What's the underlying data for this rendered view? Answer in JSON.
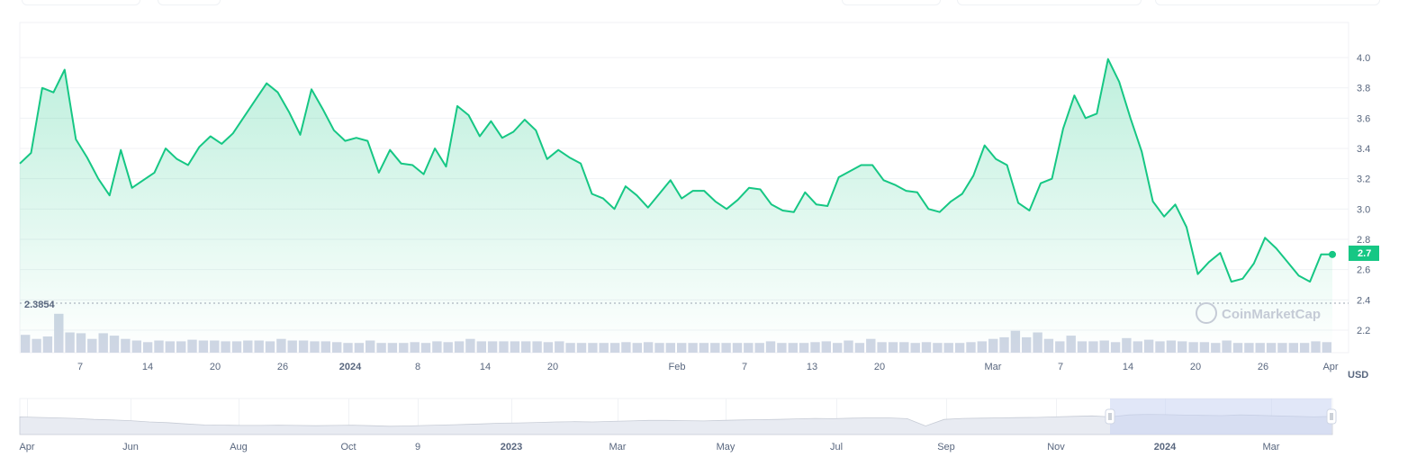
{
  "chart_data": {
    "type": "area",
    "currency_label": "USD",
    "watermark": "CoinMarketCap",
    "current_price_label": "2.7",
    "low_marker_label": "2.3854",
    "ylim": [
      2.1,
      4.2
    ],
    "y_ticks": [
      "4.0",
      "3.8",
      "3.6",
      "3.4",
      "3.2",
      "3.0",
      "2.8",
      "2.6",
      "2.4",
      "2.2"
    ],
    "x_ticks": [
      {
        "label": "7",
        "bold": false
      },
      {
        "label": "14",
        "bold": false
      },
      {
        "label": "20",
        "bold": false
      },
      {
        "label": "26",
        "bold": false
      },
      {
        "label": "2024",
        "bold": true
      },
      {
        "label": "8",
        "bold": false
      },
      {
        "label": "14",
        "bold": false
      },
      {
        "label": "20",
        "bold": false
      },
      {
        "label": "Feb",
        "bold": false
      },
      {
        "label": "7",
        "bold": false
      },
      {
        "label": "13",
        "bold": false
      },
      {
        "label": "20",
        "bold": false
      },
      {
        "label": "Mar",
        "bold": false
      },
      {
        "label": "7",
        "bold": false
      },
      {
        "label": "14",
        "bold": false
      },
      {
        "label": "20",
        "bold": false
      },
      {
        "label": "26",
        "bold": false
      },
      {
        "label": "Apr",
        "bold": false
      }
    ],
    "navigator_ticks": [
      {
        "label": "Apr",
        "bold": false
      },
      {
        "label": "Jun",
        "bold": false
      },
      {
        "label": "Aug",
        "bold": false
      },
      {
        "label": "Oct",
        "bold": false
      },
      {
        "label": "9",
        "bold": false
      },
      {
        "label": "2023",
        "bold": true
      },
      {
        "label": "Mar",
        "bold": false
      },
      {
        "label": "May",
        "bold": false
      },
      {
        "label": "Jul",
        "bold": false
      },
      {
        "label": "Sep",
        "bold": false
      },
      {
        "label": "Nov",
        "bold": false
      },
      {
        "label": "2024",
        "bold": true
      },
      {
        "label": "Mar",
        "bold": false
      }
    ],
    "price_series": [
      3.3,
      3.37,
      3.8,
      3.77,
      3.92,
      3.46,
      3.34,
      3.2,
      3.09,
      3.39,
      3.14,
      3.19,
      3.24,
      3.4,
      3.33,
      3.29,
      3.41,
      3.48,
      3.43,
      3.5,
      3.61,
      3.72,
      3.83,
      3.77,
      3.64,
      3.49,
      3.79,
      3.66,
      3.52,
      3.45,
      3.47,
      3.45,
      3.24,
      3.39,
      3.3,
      3.29,
      3.23,
      3.4,
      3.28,
      3.68,
      3.62,
      3.48,
      3.58,
      3.47,
      3.51,
      3.59,
      3.52,
      3.33,
      3.39,
      3.34,
      3.3,
      3.1,
      3.07,
      3.0,
      3.15,
      3.09,
      3.01,
      3.1,
      3.19,
      3.07,
      3.12,
      3.12,
      3.05,
      3.0,
      3.06,
      3.14,
      3.13,
      3.03,
      2.99,
      2.98,
      3.11,
      3.03,
      3.02,
      3.21,
      3.25,
      3.29,
      3.29,
      3.19,
      3.16,
      3.12,
      3.11,
      3.0,
      2.98,
      3.05,
      3.1,
      3.22,
      3.42,
      3.33,
      3.29,
      3.04,
      2.99,
      3.17,
      3.2,
      3.53,
      3.75,
      3.6,
      3.63,
      3.99,
      3.84,
      3.6,
      3.38,
      3.05,
      2.95,
      3.03,
      2.88,
      2.57,
      2.65,
      2.71,
      2.52,
      2.54,
      2.64,
      2.81,
      2.74,
      2.65,
      2.56,
      2.52,
      2.7,
      2.7
    ],
    "volume_series": [
      0.22,
      0.17,
      0.2,
      0.48,
      0.25,
      0.24,
      0.17,
      0.24,
      0.21,
      0.17,
      0.15,
      0.13,
      0.15,
      0.14,
      0.14,
      0.16,
      0.15,
      0.15,
      0.14,
      0.14,
      0.15,
      0.15,
      0.14,
      0.17,
      0.15,
      0.15,
      0.14,
      0.14,
      0.13,
      0.12,
      0.12,
      0.15,
      0.12,
      0.12,
      0.12,
      0.13,
      0.12,
      0.14,
      0.13,
      0.14,
      0.17,
      0.14,
      0.14,
      0.14,
      0.14,
      0.14,
      0.14,
      0.13,
      0.14,
      0.12,
      0.12,
      0.12,
      0.12,
      0.12,
      0.13,
      0.12,
      0.13,
      0.12,
      0.12,
      0.12,
      0.12,
      0.12,
      0.12,
      0.12,
      0.12,
      0.12,
      0.12,
      0.14,
      0.12,
      0.12,
      0.12,
      0.13,
      0.14,
      0.12,
      0.15,
      0.12,
      0.17,
      0.13,
      0.13,
      0.13,
      0.12,
      0.13,
      0.12,
      0.12,
      0.12,
      0.13,
      0.14,
      0.17,
      0.19,
      0.27,
      0.19,
      0.25,
      0.17,
      0.14,
      0.21,
      0.14,
      0.14,
      0.15,
      0.13,
      0.18,
      0.14,
      0.16,
      0.14,
      0.15,
      0.14,
      0.13,
      0.13,
      0.12,
      0.15,
      0.12,
      0.12,
      0.12,
      0.12,
      0.12,
      0.12,
      0.12,
      0.14,
      0.13
    ],
    "navigator_series": [
      0.7,
      0.68,
      0.66,
      0.64,
      0.6,
      0.58,
      0.55,
      0.5,
      0.47,
      0.42,
      0.38,
      0.37,
      0.36,
      0.36,
      0.37,
      0.36,
      0.35,
      0.36,
      0.37,
      0.35,
      0.33,
      0.34,
      0.36,
      0.38,
      0.4,
      0.42,
      0.45,
      0.46,
      0.48,
      0.5,
      0.51,
      0.5,
      0.52,
      0.54,
      0.56,
      0.56,
      0.55,
      0.54,
      0.56,
      0.58,
      0.59,
      0.6,
      0.62,
      0.64,
      0.63,
      0.65,
      0.66,
      0.66,
      0.63,
      0.34,
      0.6,
      0.64,
      0.65,
      0.66,
      0.67,
      0.68,
      0.7,
      0.72,
      0.74,
      0.7,
      0.78,
      0.8,
      0.79,
      0.77,
      0.76,
      0.75,
      0.78,
      0.76,
      0.74,
      0.72,
      0.7,
      0.72
    ],
    "grid": true
  },
  "colors": {
    "line": "#16c784",
    "volume": "#cfd6e4",
    "navigator_fill": "#e8ebf2",
    "navigator_selected": "#dde4f6",
    "price_tag": "#16c784",
    "watermark": "#c5cbd6"
  }
}
